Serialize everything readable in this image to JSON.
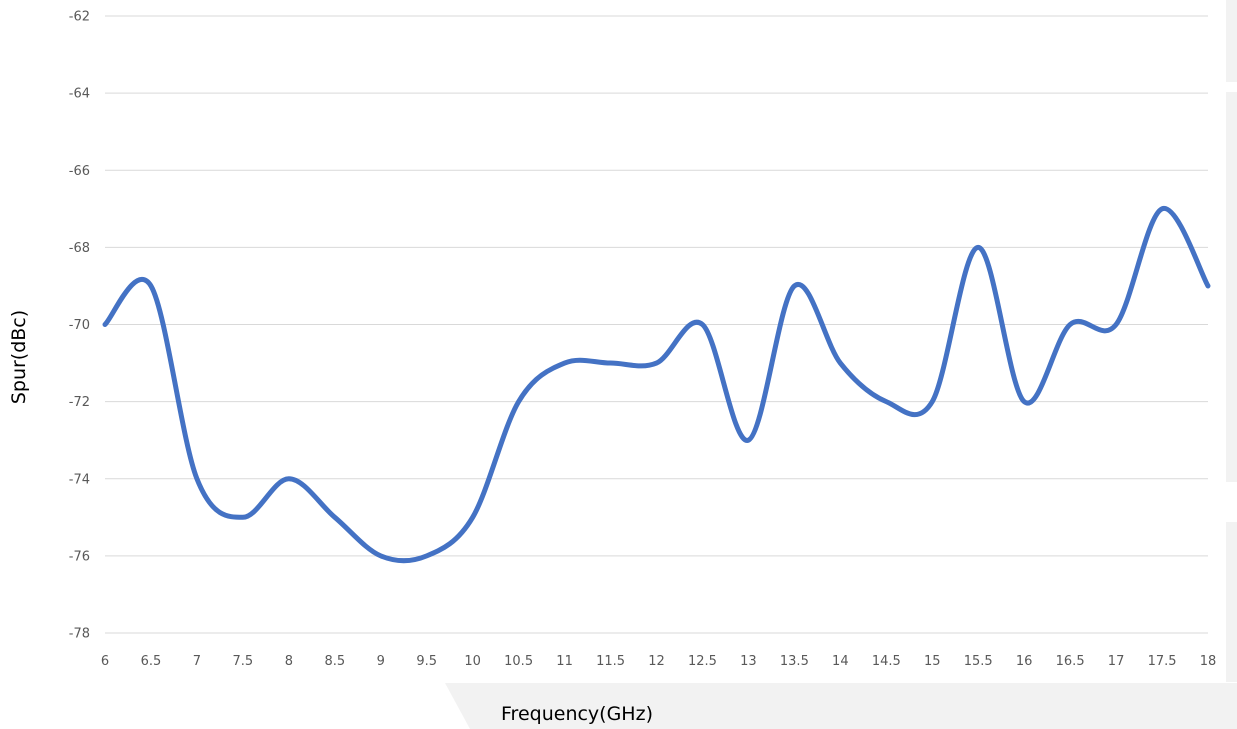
{
  "chart_data": {
    "type": "line",
    "xlabel": "Frequency(GHz)",
    "ylabel": "Spur(dBc)",
    "xlim": [
      6,
      18
    ],
    "ylim": [
      -78,
      -62
    ],
    "x_ticks": [
      "6",
      "6.5",
      "7",
      "7.5",
      "8",
      "8.5",
      "9",
      "9.5",
      "10",
      "10.5",
      "11",
      "11.5",
      "12",
      "12.5",
      "13",
      "13.5",
      "14",
      "14.5",
      "15",
      "15.5",
      "16",
      "16.5",
      "17",
      "17.5",
      "18"
    ],
    "y_ticks": [
      "-62",
      "-64",
      "-66",
      "-68",
      "-70",
      "-72",
      "-74",
      "-76",
      "-78"
    ],
    "grid": true,
    "series": [
      {
        "color": "#4472c4",
        "x": [
          6,
          6.5,
          7,
          7.5,
          8,
          8.5,
          9,
          9.5,
          10,
          10.5,
          11,
          11.5,
          12,
          12.5,
          13,
          13.5,
          14,
          14.5,
          15,
          15.5,
          16,
          16.5,
          17,
          17.5,
          18
        ],
        "y": [
          -70,
          -69,
          -74,
          -75,
          -74,
          -75,
          -76,
          -76,
          -75,
          -72,
          -71,
          -71,
          -71,
          -70,
          -73,
          -69,
          -71,
          -72,
          -72,
          -68,
          -72,
          -70,
          -70,
          -67,
          -69
        ]
      }
    ]
  }
}
